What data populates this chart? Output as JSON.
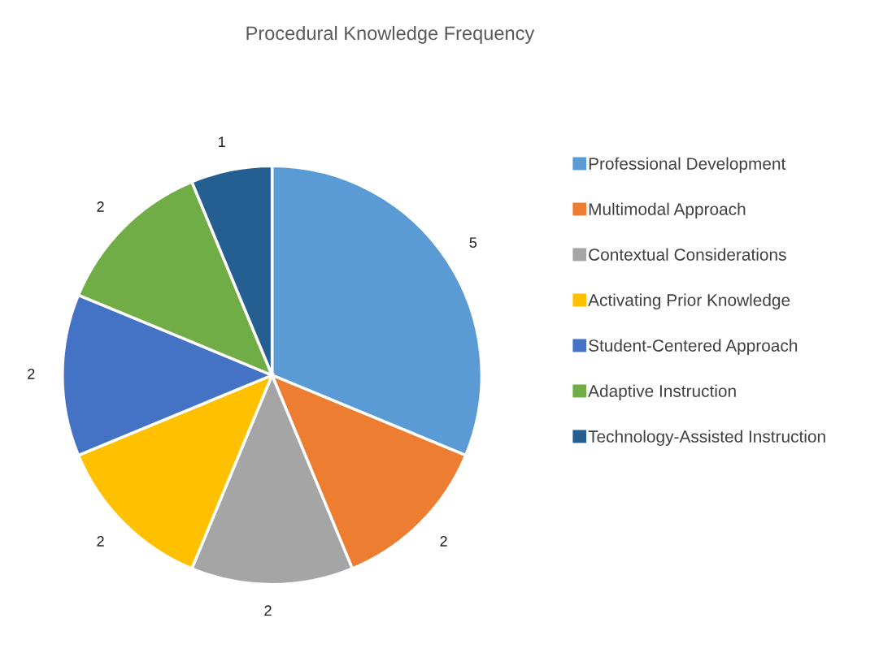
{
  "chart_data": {
    "type": "pie",
    "title": "Procedural Knowledge Frequency",
    "categories": [
      "Professional Development",
      "Multimodal Approach",
      "Contextual Considerations",
      "Activating Prior Knowledge",
      "Student-Centered Approach",
      "Adaptive Instruction",
      "Technology-Assisted Instruction"
    ],
    "values": [
      5,
      2,
      2,
      2,
      2,
      2,
      1
    ],
    "colors": [
      "#5b9bd5",
      "#ed7d31",
      "#a5a5a5",
      "#ffc000",
      "#4472c4",
      "#70ad47",
      "#255e91"
    ],
    "data_labels": true,
    "legend": "right"
  }
}
